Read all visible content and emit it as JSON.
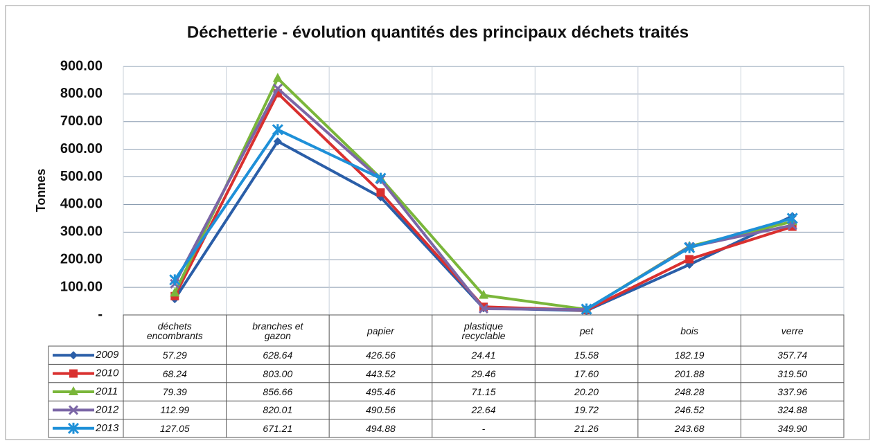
{
  "chart_data": {
    "type": "line",
    "title": "Déchetterie - évolution quantités des principaux déchets traités",
    "y_label": "Tonnes",
    "categories": [
      "déchets encombrants",
      "branches et gazon",
      "papier",
      "plastique recyclable",
      "pet",
      "bois",
      "verre"
    ],
    "ylim": [
      0,
      900
    ],
    "yticks": [
      {
        "value": 0,
        "label": "-"
      },
      {
        "value": 100,
        "label": "100.00"
      },
      {
        "value": 200,
        "label": "200.00"
      },
      {
        "value": 300,
        "label": "300.00"
      },
      {
        "value": 400,
        "label": "400.00"
      },
      {
        "value": 500,
        "label": "500.00"
      },
      {
        "value": 600,
        "label": "600.00"
      },
      {
        "value": 700,
        "label": "700.00"
      },
      {
        "value": 800,
        "label": "800.00"
      },
      {
        "value": 900,
        "label": "900.00"
      }
    ],
    "grid": true,
    "series": [
      {
        "name": "2009",
        "color": "#2a5ea8",
        "marker": "diamond",
        "values": [
          57.29,
          628.64,
          426.56,
          24.41,
          15.58,
          182.19,
          357.74
        ],
        "value_labels": [
          "57.29",
          "628.64",
          "426.56",
          "24.41",
          "15.58",
          "182.19",
          "357.74"
        ]
      },
      {
        "name": "2010",
        "color": "#d9302f",
        "marker": "square",
        "values": [
          68.24,
          803,
          443.52,
          29.46,
          17.6,
          201.88,
          319.5
        ],
        "value_labels": [
          "68.24",
          "803.00",
          "443.52",
          "29.46",
          "17.60",
          "201.88",
          "319.50"
        ]
      },
      {
        "name": "2011",
        "color": "#7ab63a",
        "marker": "triangle",
        "values": [
          79.39,
          856.66,
          495.46,
          71.15,
          20.2,
          248.28,
          337.96
        ],
        "value_labels": [
          "79.39",
          "856.66",
          "495.46",
          "71.15",
          "20.20",
          "248.28",
          "337.96"
        ]
      },
      {
        "name": "2012",
        "color": "#7b66a6",
        "marker": "x",
        "values": [
          112.99,
          820.01,
          490.56,
          22.64,
          19.72,
          246.52,
          324.88
        ],
        "value_labels": [
          "112.99",
          "820.01",
          "490.56",
          "22.64",
          "19.72",
          "246.52",
          "324.88"
        ]
      },
      {
        "name": "2013",
        "color": "#1e90d8",
        "marker": "star",
        "values": [
          127.05,
          671.21,
          494.88,
          null,
          21.26,
          243.68,
          349.9
        ],
        "value_labels": [
          "127.05",
          "671.21",
          "494.88",
          "-",
          "21.26",
          "243.68",
          "349.90"
        ]
      }
    ]
  }
}
